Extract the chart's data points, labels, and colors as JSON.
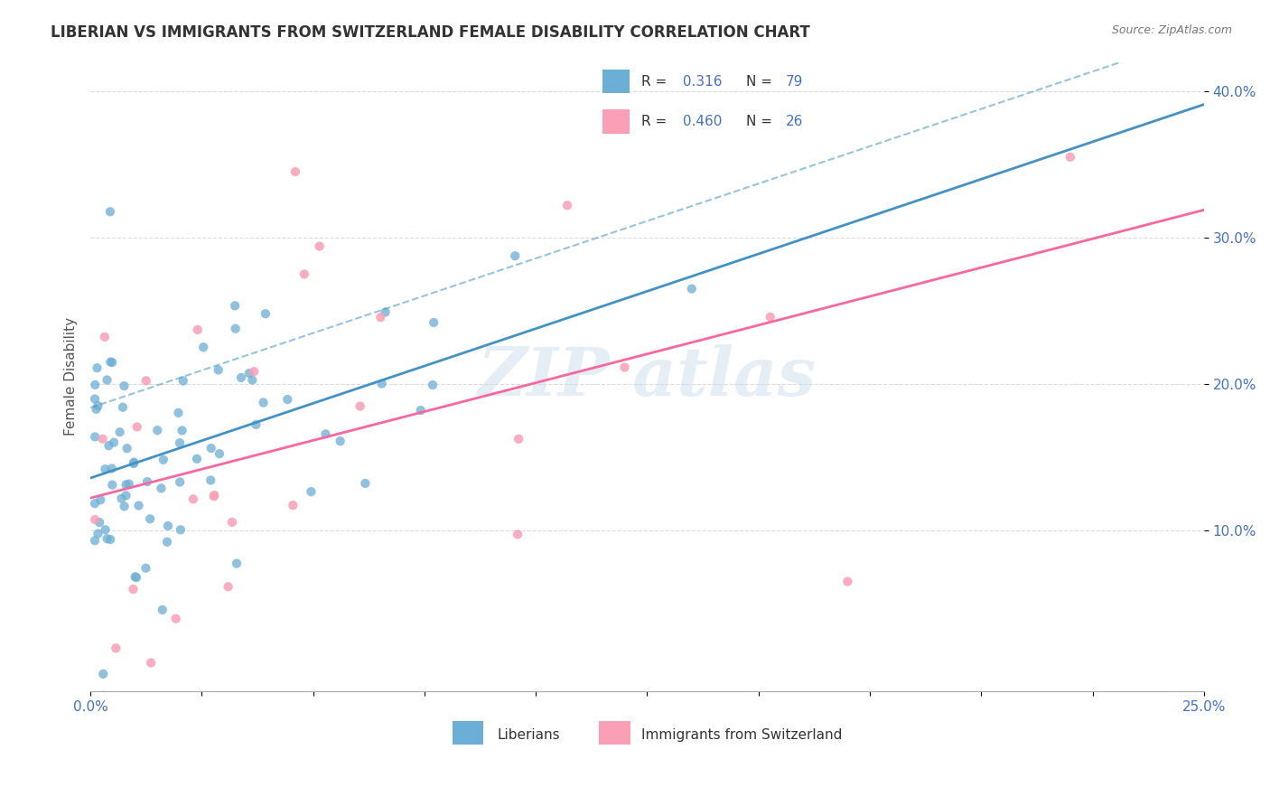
{
  "title": "LIBERIAN VS IMMIGRANTS FROM SWITZERLAND FEMALE DISABILITY CORRELATION CHART",
  "source": "Source: ZipAtlas.com",
  "ylabel": "Female Disability",
  "xlim": [
    0.0,
    0.25
  ],
  "ylim": [
    -0.01,
    0.42
  ],
  "ytick_positions": [
    0.1,
    0.2,
    0.3,
    0.4
  ],
  "ytick_labels": [
    "10.0%",
    "20.0%",
    "30.0%",
    "40.0%"
  ],
  "blue_color": "#6baed6",
  "pink_color": "#fa9fb5",
  "blue_line_color": "#4292c6",
  "pink_line_color": "#f768a1",
  "blue_r": 0.316,
  "blue_n": 79,
  "pink_r": 0.46,
  "pink_n": 26,
  "legend_color": "#4472c4",
  "tick_color": "#4472c4",
  "title_color": "#333333",
  "source_color": "#777777",
  "ylabel_color": "#555555",
  "watermark_color": "#c8daea",
  "grid_color": "#cccccc",
  "spine_color": "#aaaaaa"
}
